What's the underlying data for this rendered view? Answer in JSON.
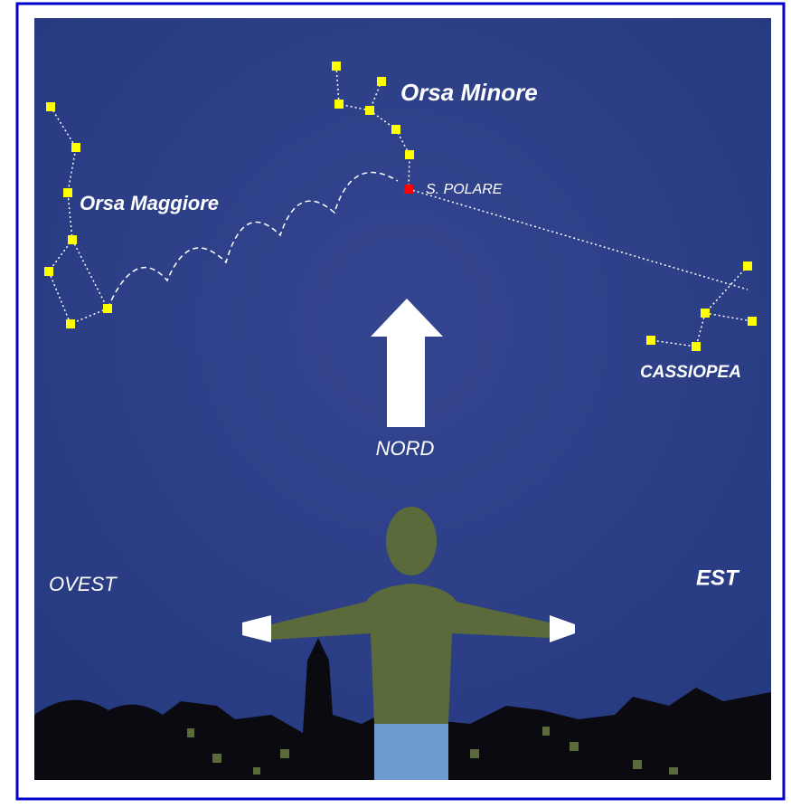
{
  "labels": {
    "ursa_minor": "Orsa Minore",
    "ursa_major": "Orsa Maggiore",
    "polaris": "S. POLARE",
    "cassiopeia": "CASSIOPEA",
    "north": "NORD",
    "west": "OVEST",
    "east": "EST"
  }
}
